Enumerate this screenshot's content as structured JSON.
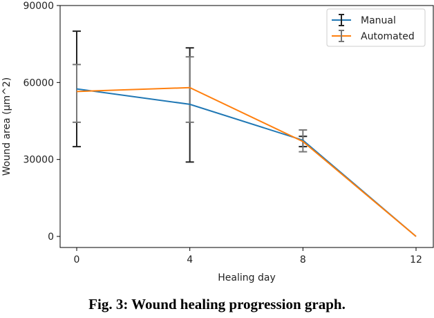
{
  "caption": "Fig. 3: Wound healing progression graph.",
  "chart_data": {
    "type": "line",
    "title": "",
    "xlabel": "Healing day",
    "ylabel": "Wound area (µm^2)",
    "x": [
      0,
      4,
      8,
      12
    ],
    "xticks": [
      "0",
      "4",
      "8",
      "12"
    ],
    "yticks": [
      "0",
      "30000",
      "60000",
      "90000"
    ],
    "xlim": [
      -0.6,
      12.7
    ],
    "ylim": [
      -4000,
      90000
    ],
    "grid": false,
    "legend_position": "top-right",
    "series": [
      {
        "name": "Manual",
        "color": "#1f77b4",
        "errorbar_color": "#222222",
        "values": [
          57500,
          51500,
          37500,
          0
        ],
        "error_low": [
          35000,
          29000,
          35000,
          0
        ],
        "error_high": [
          80000,
          73500,
          39000,
          0
        ]
      },
      {
        "name": "Automated",
        "color": "#ff7f0e",
        "errorbar_color": "#777777",
        "values": [
          56500,
          58000,
          37000,
          0
        ],
        "error_low": [
          44500,
          44500,
          33000,
          0
        ],
        "error_high": [
          67000,
          70000,
          41500,
          0
        ]
      }
    ]
  }
}
